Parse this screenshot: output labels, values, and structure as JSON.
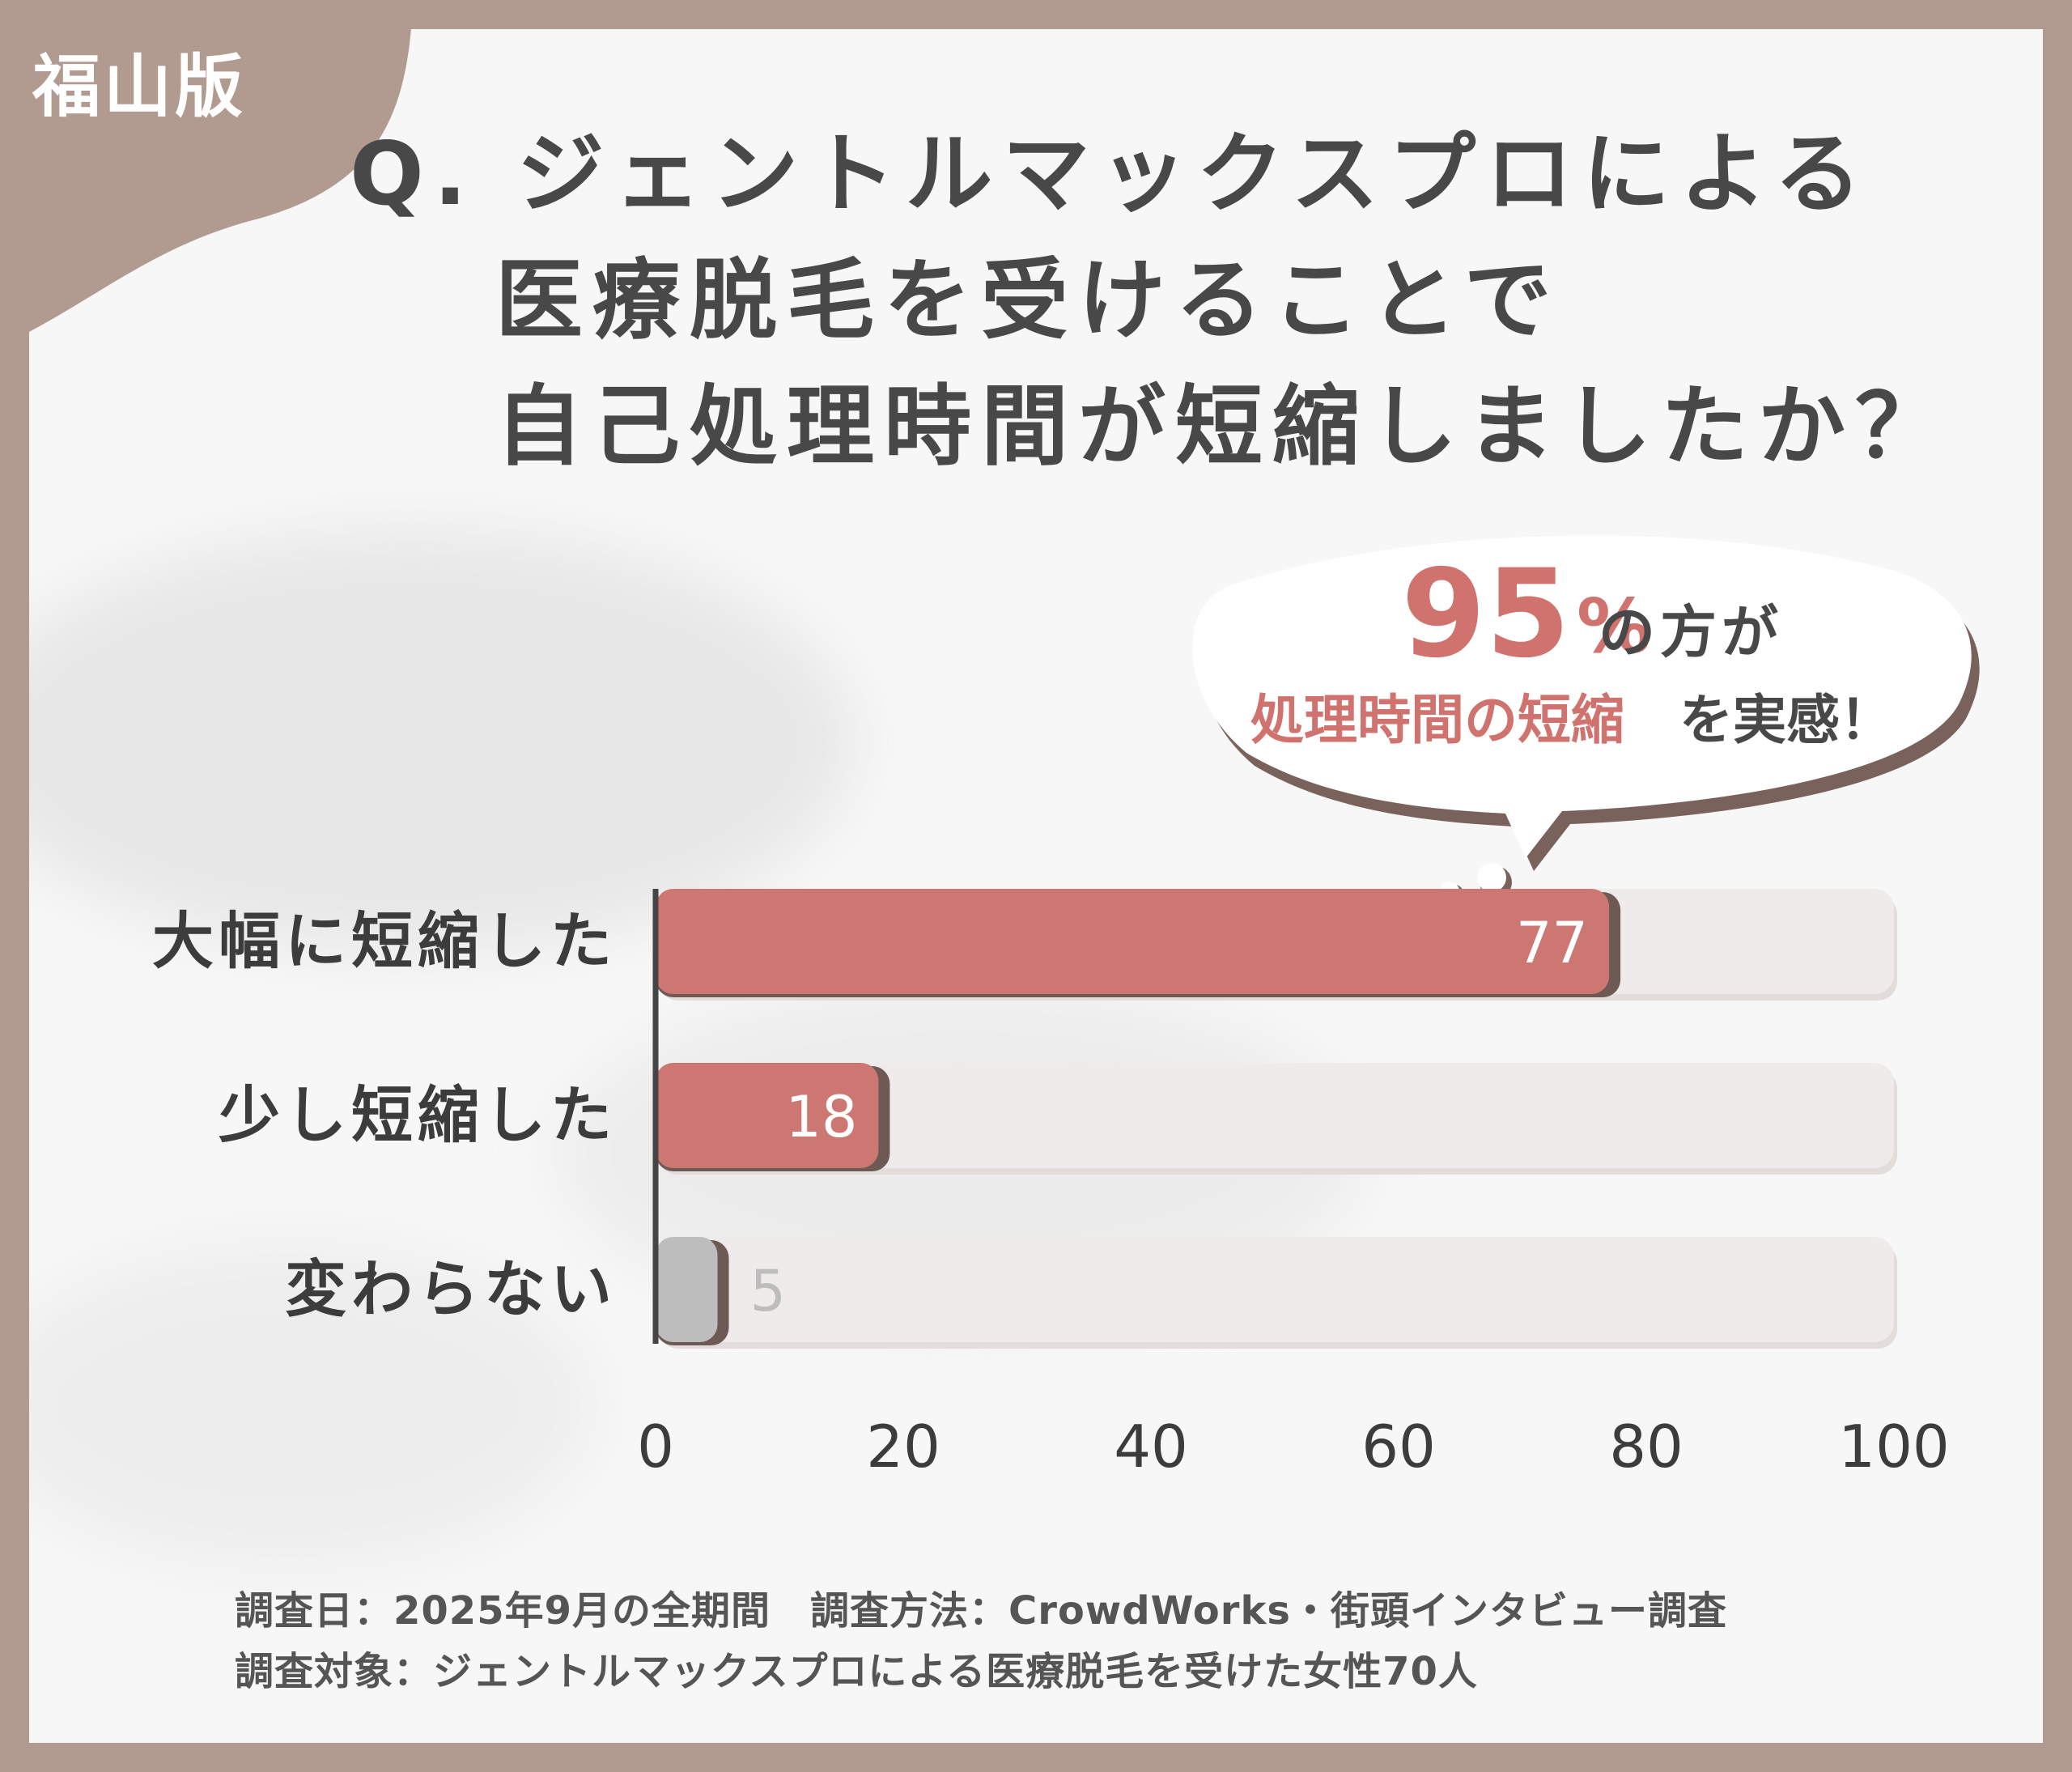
{
  "badge": "福山版",
  "question": {
    "line1": "Q. ジェントルマックスプロによる",
    "line2": "医療脱毛を受けることで",
    "line3": "自己処理時間が短縮しましたか？"
  },
  "callout": {
    "percent": "95",
    "percent_sign": "%",
    "suffix": "の方が",
    "highlight": "処理時間の短縮",
    "ending": "を実感！"
  },
  "chart_data": {
    "type": "bar",
    "orientation": "horizontal",
    "categories": [
      "大幅に短縮した",
      "少し短縮した",
      "変わらない"
    ],
    "values": [
      77,
      18,
      5
    ],
    "xlim": [
      0,
      100
    ],
    "xticks": [
      "0",
      "20",
      "40",
      "60",
      "80",
      "100"
    ],
    "colors": [
      "#cd7773",
      "#cd7773",
      "#bdbdbd"
    ],
    "track_color": "#efebea"
  },
  "footer": {
    "line1": "調査日：2025年9月の全期間　調査方法：CrowdWorks・街頭インタビュー調査",
    "line2": "調査対象：ジェントルマックスプロによる医療脱毛を受けた女性70人"
  }
}
